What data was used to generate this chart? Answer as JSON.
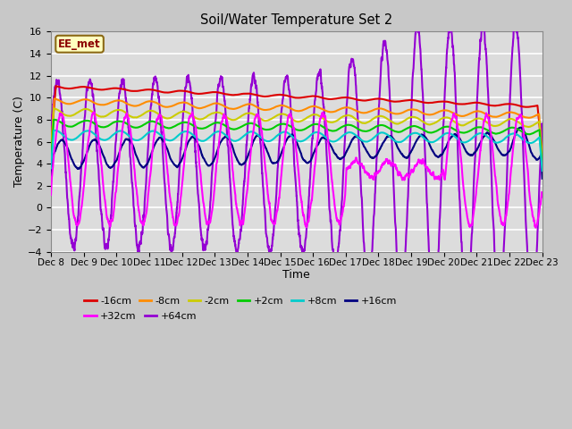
{
  "title": "Soil/Water Temperature Set 2",
  "xlabel": "Time",
  "ylabel": "Temperature (C)",
  "ylim": [
    -4,
    16
  ],
  "yticks": [
    -4,
    -2,
    0,
    2,
    4,
    6,
    8,
    10,
    12,
    14,
    16
  ],
  "x_tick_labels": [
    "Dec 8",
    "Dec 9",
    "Dec 10",
    "Dec 11",
    "Dec 12",
    "Dec 13",
    "Dec 14",
    "Dec 15",
    "Dec 16",
    "Dec 17",
    "Dec 18",
    "Dec 19",
    "Dec 20",
    "Dec 21",
    "Dec 22",
    "Dec 23"
  ],
  "annotation_text": "EE_met",
  "annotation_color": "#8B0000",
  "annotation_bg": "#FFFFC0",
  "annotation_border": "#8B6914",
  "plot_bg": "#DCDCDC",
  "grid_color": "#FFFFFF",
  "series": [
    {
      "label": "-16cm",
      "color": "#DD0000"
    },
    {
      "label": "-8cm",
      "color": "#FF8C00"
    },
    {
      "label": "-2cm",
      "color": "#CCCC00"
    },
    {
      "label": "+2cm",
      "color": "#00CC00"
    },
    {
      "label": "+8cm",
      "color": "#00CCCC"
    },
    {
      "label": "+16cm",
      "color": "#000080"
    },
    {
      "label": "+32cm",
      "color": "#FF00FF"
    },
    {
      "label": "+64cm",
      "color": "#9400D3"
    }
  ],
  "figsize": [
    6.4,
    4.8
  ],
  "dpi": 100
}
